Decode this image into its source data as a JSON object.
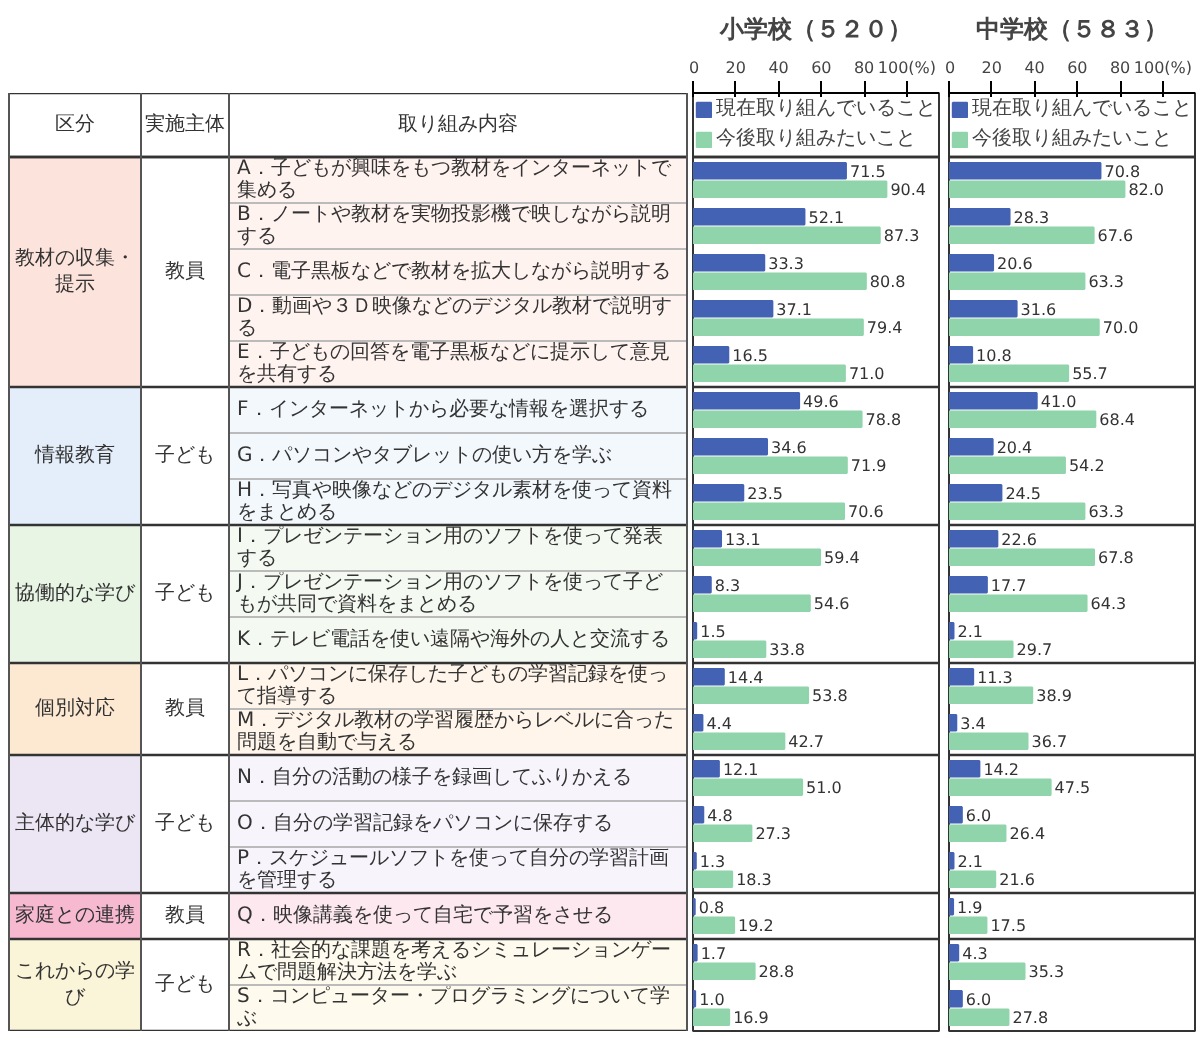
{
  "chart_data": [
    {
      "type": "bar",
      "orientation": "horizontal",
      "title": "小学校（５２０）",
      "legend": "top",
      "categories": [
        "A．子どもが興味をもつ教材をインターネットで集める",
        "B．ノートや教材を実物投影機で映しながら説明する",
        "C．電子黒板などで教材を拡大しながら説明する",
        "D．動画や３Ｄ映像などのデジタル教材で説明する",
        "E．子どもの回答を電子黒板などに提示して意見を共有する",
        "F．インターネットから必要な情報を選択する",
        "G．パソコンやタブレットの使い方を学ぶ",
        "H．写真や映像などのデジタル素材を使って資料をまとめる",
        "I．プレゼンテーション用のソフトを使って発表する",
        "J．プレゼンテーション用のソフトを使って子どもが共同で資料をまとめる",
        "K．テレビ電話を使い遠隔や海外の人と交流する",
        "L．パソコンに保存した子どもの学習記録を使って指導する",
        "M．デジタル教材の学習履歴からレベルに合った問題を自動で与える",
        "N．自分の活動の様子を録画してふりかえる",
        "O．自分の学習記録をパソコンに保存する",
        "P．スケジュールソフトを使って自分の学習計画を管理する",
        "Q．映像講義を使って自宅で予習をさせる",
        "R．社会的な課題を考えるシミュレーションゲームで問題解決方法を学ぶ",
        "S．コンピューター・プログラミングについて学ぶ"
      ],
      "series": [
        {
          "name": "現在取り組んでいること",
          "color": "#4462b4",
          "values": [
            71.5,
            52.1,
            33.3,
            37.1,
            16.5,
            49.6,
            34.6,
            23.5,
            13.1,
            8.3,
            1.5,
            14.4,
            4.4,
            12.1,
            4.8,
            1.3,
            0.8,
            1.7,
            1.0
          ],
          "value_labels": [
            "71.5",
            "52.1",
            "33.3",
            "37.1",
            "16.5",
            "49.6",
            "34.6",
            "23.5",
            "13.1",
            "8.3",
            "1.5",
            "14.4",
            "4.4",
            "12.1",
            "4.8",
            "1.3",
            "0.8",
            "1.7",
            "1.0"
          ]
        },
        {
          "name": "今後取り組みたいこと",
          "color": "#8fd4aa",
          "values": [
            90.4,
            87.3,
            80.8,
            79.4,
            71.0,
            78.8,
            71.9,
            70.6,
            59.4,
            54.6,
            33.8,
            53.8,
            42.7,
            51.0,
            27.3,
            18.3,
            19.2,
            28.8,
            16.9
          ],
          "value_labels": [
            "90.4",
            "87.3",
            "80.8",
            "79.4",
            "71.0",
            "78.8",
            "71.9",
            "70.6",
            "59.4",
            "54.6",
            "33.8",
            "53.8",
            "42.7",
            "51.0",
            "27.3",
            "18.3",
            "19.2",
            "28.8",
            "16.9"
          ]
        }
      ],
      "xlim": [
        0,
        115
      ],
      "xticks": [
        0,
        20,
        40,
        60,
        80,
        {
          "value": 100,
          "label": "100(%)"
        }
      ],
      "annotations": [
        "区分",
        "実施主体",
        "取り組み内容",
        "教材の収集・提示",
        "教員",
        "情報教育",
        "子ども",
        "協働的な学び",
        "子ども",
        "個別対応",
        "教員",
        "主体的な学び",
        "子ども",
        "家庭との連携",
        "教員",
        "これからの学び",
        "子ども"
      ]
    },
    {
      "type": "bar",
      "orientation": "horizontal",
      "title": "中学校（５８３）",
      "legend": "top",
      "tick_labels": "x",
      "categories": [
        "A．子どもが興味をもつ教材をインターネットで集める",
        "B．ノートや教材を実物投影機で映しながら説明する",
        "C．電子黒板などで教材を拡大しながら説明する",
        "D．動画や３Ｄ映像などのデジタル教材で説明する",
        "E．子どもの回答を電子黒板などに提示して意見を共有する",
        "F．インターネットから必要な情報を選択する",
        "G．パソコンやタブレットの使い方を学ぶ",
        "H．写真や映像などのデジタル素材を使って資料をまとめる",
        "I．プレゼンテーション用のソフトを使って発表する",
        "J．プレゼンテーション用のソフトを使って子どもが共同で資料をまとめる",
        "K．テレビ電話を使い遠隔や海外の人と交流する",
        "L．パソコンに保存した子どもの学習記録を使って指導する",
        "M．デジタル教材の学習履歴からレベルに合った問題を自動で与える",
        "N．自分の活動の様子を録画してふりかえる",
        "O．自分の学習記録をパソコンに保存する",
        "P．スケジュールソフトを使って自分の学習計画を管理する",
        "Q．映像講義を使って自宅で予習をさせる",
        "R．社会的な課題を考えるシミュレーションゲームで問題解決方法を学ぶ",
        "S．コンピューター・プログラミングについて学ぶ"
      ],
      "series": [
        {
          "name": "現在取り組んでいること",
          "color": "#4462b4",
          "values": [
            70.8,
            28.3,
            20.6,
            31.6,
            10.8,
            41.0,
            20.4,
            24.5,
            22.6,
            17.7,
            2.1,
            11.3,
            3.4,
            14.2,
            6.0,
            2.1,
            1.9,
            4.3,
            6.0
          ],
          "value_labels": [
            "70.8",
            "28.3",
            "20.6",
            "31.6",
            "10.8",
            "41.0",
            "20.4",
            "24.5",
            "22.6",
            "17.7",
            "2.1",
            "11.3",
            "3.4",
            "14.2",
            "6.0",
            "2.1",
            "1.9",
            "4.3",
            "6.0"
          ]
        },
        {
          "name": "今後取り組みたいこと",
          "color": "#8fd4aa",
          "values": [
            82.0,
            67.6,
            63.3,
            70.0,
            55.7,
            68.4,
            54.2,
            63.3,
            67.8,
            64.3,
            29.7,
            38.9,
            36.7,
            47.5,
            26.4,
            21.6,
            17.5,
            35.3,
            27.8
          ],
          "value_labels": [
            "82.0",
            "67.6",
            "63.3",
            "70.0",
            "55.7",
            "68.4",
            "54.2",
            "63.3",
            "67.8",
            "64.3",
            "29.7",
            "38.9",
            "36.7",
            "47.5",
            "26.4",
            "21.6",
            "17.5",
            "35.3",
            "27.8"
          ]
        }
      ],
      "xlim": [
        0,
        115
      ],
      "xticks": [
        0,
        20,
        40,
        60,
        80,
        {
          "value": 100,
          "label": "100(%)"
        }
      ]
    }
  ]
}
